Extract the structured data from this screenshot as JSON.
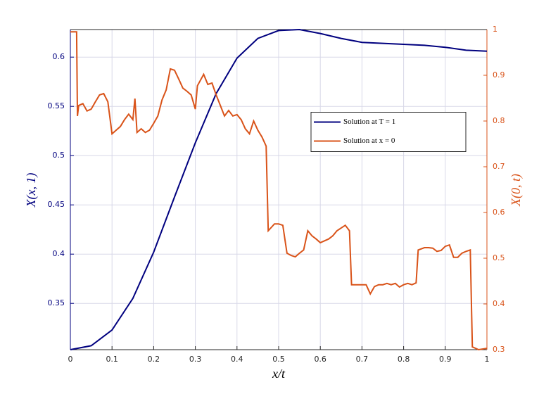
{
  "chart_data": {
    "type": "line",
    "xlabel": "x/t",
    "ylabel": "X(x, 1)",
    "y2label": "X(0, t)",
    "xlim": [
      0,
      1
    ],
    "xticks": [
      0,
      0.1,
      0.2,
      0.3,
      0.4,
      0.5,
      0.6,
      0.7,
      0.8,
      0.9,
      1
    ],
    "ylim": [
      0.303,
      0.628
    ],
    "yticks": [
      0.35,
      0.4,
      0.45,
      0.5,
      0.55,
      0.6
    ],
    "y2lim": [
      0.3,
      1
    ],
    "y2ticks": [
      0.3,
      0.4,
      0.5,
      0.6,
      0.7,
      0.8,
      0.9,
      1
    ],
    "grid": true,
    "legend": "center right",
    "series": [
      {
        "name": "Solution at T = 1",
        "color": "#00007f",
        "axis": "y",
        "x": [
          0,
          0.05,
          0.1,
          0.15,
          0.2,
          0.25,
          0.3,
          0.35,
          0.4,
          0.45,
          0.5,
          0.55,
          0.6,
          0.65,
          0.7,
          0.75,
          0.8,
          0.85,
          0.9,
          0.95,
          1
        ],
        "values": [
          0.303,
          0.307,
          0.323,
          0.355,
          0.402,
          0.458,
          0.513,
          0.563,
          0.599,
          0.619,
          0.627,
          0.628,
          0.624,
          0.619,
          0.615,
          0.614,
          0.613,
          0.612,
          0.61,
          0.607,
          0.606
        ]
      },
      {
        "name": "Solution at x = 0",
        "color": "#d95319",
        "axis": "y2",
        "x": [
          0,
          0.015,
          0.017,
          0.02,
          0.03,
          0.04,
          0.05,
          0.06,
          0.07,
          0.08,
          0.09,
          0.1,
          0.11,
          0.12,
          0.13,
          0.14,
          0.15,
          0.155,
          0.16,
          0.17,
          0.18,
          0.19,
          0.2,
          0.21,
          0.22,
          0.23,
          0.24,
          0.25,
          0.26,
          0.27,
          0.28,
          0.29,
          0.3,
          0.305,
          0.32,
          0.33,
          0.34,
          0.35,
          0.36,
          0.37,
          0.38,
          0.39,
          0.4,
          0.41,
          0.42,
          0.43,
          0.44,
          0.45,
          0.46,
          0.47,
          0.475,
          0.48,
          0.49,
          0.5,
          0.51,
          0.52,
          0.53,
          0.54,
          0.55,
          0.56,
          0.57,
          0.58,
          0.59,
          0.6,
          0.61,
          0.62,
          0.63,
          0.64,
          0.65,
          0.66,
          0.67,
          0.675,
          0.69,
          0.7,
          0.71,
          0.72,
          0.73,
          0.74,
          0.75,
          0.76,
          0.77,
          0.78,
          0.79,
          0.8,
          0.81,
          0.82,
          0.83,
          0.835,
          0.85,
          0.86,
          0.87,
          0.88,
          0.89,
          0.9,
          0.91,
          0.92,
          0.93,
          0.94,
          0.95,
          0.96,
          0.965,
          0.98,
          1
        ],
        "values": [
          0.995,
          0.995,
          0.811,
          0.834,
          0.838,
          0.822,
          0.826,
          0.842,
          0.857,
          0.86,
          0.842,
          0.772,
          0.78,
          0.788,
          0.803,
          0.815,
          0.803,
          0.849,
          0.775,
          0.783,
          0.775,
          0.78,
          0.795,
          0.811,
          0.846,
          0.868,
          0.914,
          0.911,
          0.892,
          0.872,
          0.865,
          0.857,
          0.826,
          0.877,
          0.902,
          0.88,
          0.883,
          0.857,
          0.834,
          0.811,
          0.823,
          0.811,
          0.814,
          0.803,
          0.783,
          0.772,
          0.8,
          0.78,
          0.765,
          0.745,
          0.56,
          0.565,
          0.575,
          0.575,
          0.572,
          0.511,
          0.506,
          0.503,
          0.511,
          0.518,
          0.56,
          0.549,
          0.542,
          0.534,
          0.538,
          0.542,
          0.549,
          0.56,
          0.566,
          0.572,
          0.56,
          0.442,
          0.442,
          0.442,
          0.442,
          0.422,
          0.438,
          0.442,
          0.442,
          0.445,
          0.442,
          0.445,
          0.437,
          0.442,
          0.445,
          0.442,
          0.446,
          0.518,
          0.523,
          0.523,
          0.522,
          0.515,
          0.517,
          0.526,
          0.529,
          0.502,
          0.502,
          0.511,
          0.515,
          0.518,
          0.306,
          0.3,
          0.303
        ]
      }
    ]
  }
}
